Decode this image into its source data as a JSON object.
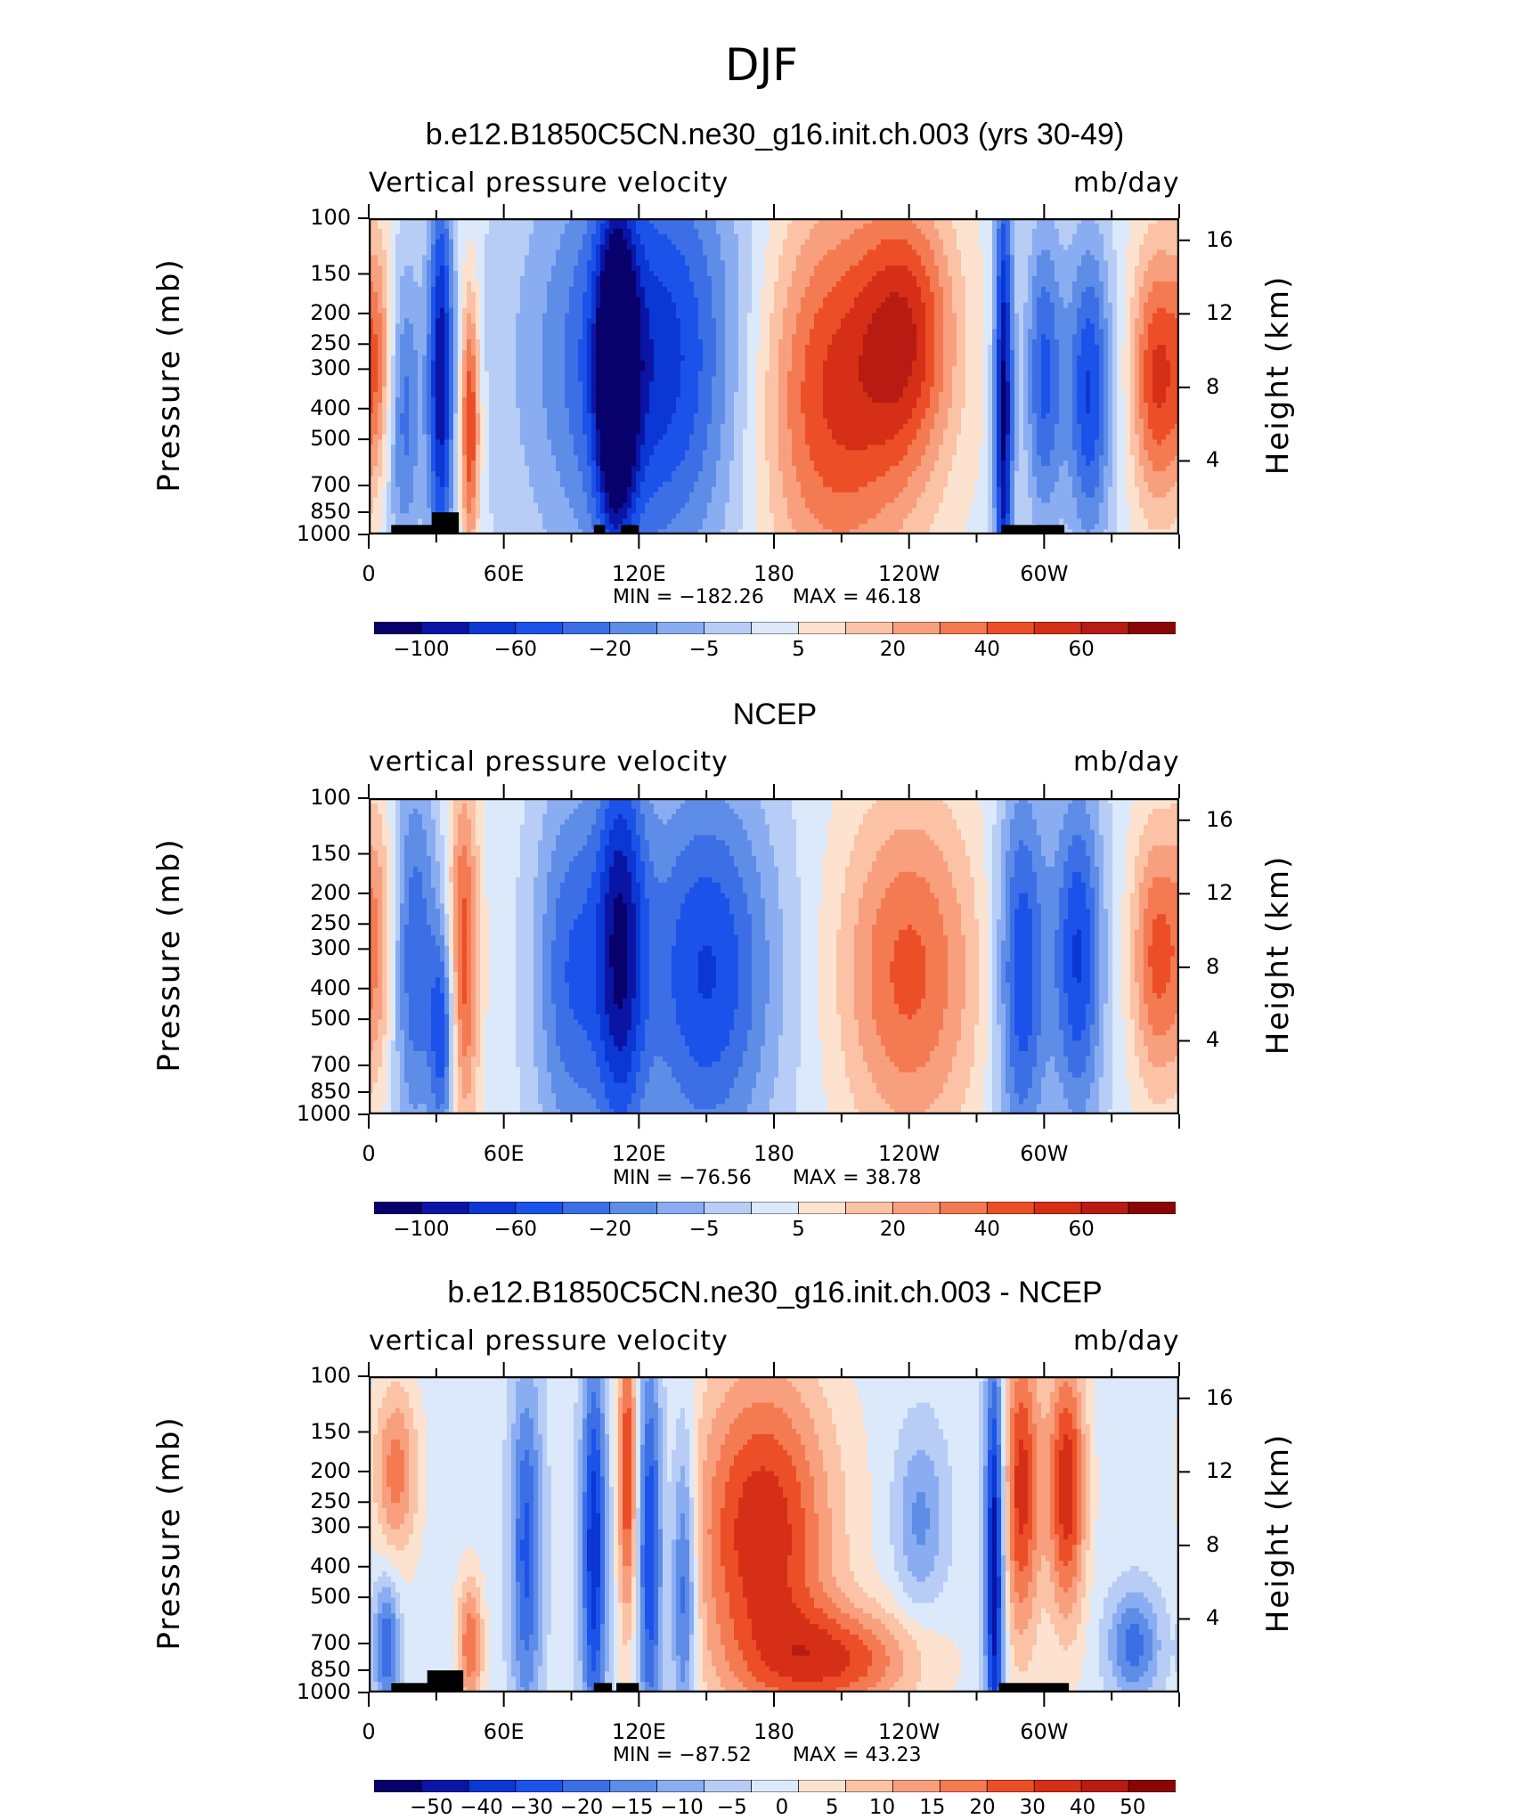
{
  "figure": {
    "suptitle": "DJF",
    "colors": {
      "model_obs_scale": [
        "#08006b",
        "#0a15a5",
        "#0b37d4",
        "#1b53ea",
        "#3c6fe6",
        "#5e8de8",
        "#8aadf2",
        "#b7cdf6",
        "#dbe9fb",
        "#fde3cf",
        "#fbc2a6",
        "#f89f7e",
        "#f47a52",
        "#ec4f27",
        "#d62f17",
        "#b81b12",
        "#8a0606"
      ]
    }
  },
  "chart_data": [
    {
      "type": "heatmap",
      "title": "b.e12.B1850C5CN.ne30_g16.init.ch.003 (yrs 30-49)",
      "left_label": "Vertical pressure velocity",
      "right_label": "mb/day",
      "ylabel": "Pressure (mb)",
      "ylabel_right": "Height (km)",
      "x_ticks": [
        "0",
        "60E",
        "120E",
        "180",
        "120W",
        "60W"
      ],
      "y_ticks": [
        "100",
        "150",
        "200",
        "250",
        "300",
        "400",
        "500",
        "700",
        "850",
        "1000"
      ],
      "y_right_ticks": [
        "16",
        "12",
        "8",
        "4"
      ],
      "min_label": "MIN = −182.26",
      "max_label": "MAX = 46.18",
      "colorbar_labels": [
        "−100",
        "−60",
        "−20",
        "−5",
        "5",
        "20",
        "40",
        "60"
      ],
      "blobs": [
        {
          "lon": 15,
          "p": 0.6,
          "rl": 6,
          "rp": 0.35,
          "v": -0.55
        },
        {
          "lon": 32,
          "p": 0.5,
          "rl": 4,
          "rp": 0.45,
          "v": -0.9
        },
        {
          "lon": 45,
          "p": 0.65,
          "rl": 3,
          "rp": 0.3,
          "v": 0.75
        },
        {
          "lon": 5,
          "p": 0.45,
          "rl": 6,
          "rp": 0.3,
          "v": 0.5
        },
        {
          "lon": 125,
          "p": 0.45,
          "rl": 35,
          "rp": 0.5,
          "v": -0.8
        },
        {
          "lon": 110,
          "p": 0.5,
          "rl": 6,
          "rp": 0.35,
          "v": -1.0
        },
        {
          "lon": 205,
          "p": 0.55,
          "rl": 28,
          "rp": 0.45,
          "v": 0.75
        },
        {
          "lon": 240,
          "p": 0.35,
          "rl": 15,
          "rp": 0.3,
          "v": 0.55
        },
        {
          "lon": 282,
          "p": 0.6,
          "rl": 3,
          "rp": 0.55,
          "v": -1.0
        },
        {
          "lon": 300,
          "p": 0.5,
          "rl": 6,
          "rp": 0.35,
          "v": -0.6
        },
        {
          "lon": 320,
          "p": 0.55,
          "rl": 7,
          "rp": 0.35,
          "v": -0.7
        },
        {
          "lon": 350,
          "p": 0.5,
          "rl": 8,
          "rp": 0.3,
          "v": 0.7
        }
      ],
      "topo": [
        [
          10,
          30,
          0.97
        ],
        [
          28,
          40,
          0.93
        ],
        [
          100,
          105,
          0.97
        ],
        [
          112,
          120,
          0.97
        ],
        [
          281,
          309,
          0.97
        ]
      ]
    },
    {
      "type": "heatmap",
      "title": "NCEP",
      "left_label": "vertical pressure velocity",
      "right_label": "mb/day",
      "ylabel": "Pressure (mb)",
      "ylabel_right": "Height (km)",
      "x_ticks": [
        "0",
        "60E",
        "120E",
        "180",
        "120W",
        "60W"
      ],
      "y_ticks": [
        "100",
        "150",
        "200",
        "250",
        "300",
        "400",
        "500",
        "700",
        "850",
        "1000"
      ],
      "y_right_ticks": [
        "16",
        "12",
        "8",
        "4"
      ],
      "min_label": "MIN = −76.56",
      "max_label": "MAX = 38.78",
      "colorbar_labels": [
        "−100",
        "−60",
        "−20",
        "−5",
        "5",
        "20",
        "40",
        "60"
      ],
      "blobs": [
        {
          "lon": 20,
          "p": 0.5,
          "rl": 8,
          "rp": 0.45,
          "v": -0.55
        },
        {
          "lon": 33,
          "p": 0.75,
          "rl": 4,
          "rp": 0.25,
          "v": -0.6
        },
        {
          "lon": 42,
          "p": 0.5,
          "rl": 5,
          "rp": 0.4,
          "v": 0.65
        },
        {
          "lon": 5,
          "p": 0.45,
          "rl": 6,
          "rp": 0.35,
          "v": 0.4
        },
        {
          "lon": 90,
          "p": 0.55,
          "rl": 12,
          "rp": 0.45,
          "v": -0.55
        },
        {
          "lon": 112,
          "p": 0.45,
          "rl": 8,
          "rp": 0.5,
          "v": -0.75
        },
        {
          "lon": 150,
          "p": 0.55,
          "rl": 22,
          "rp": 0.45,
          "v": -0.7
        },
        {
          "lon": 240,
          "p": 0.55,
          "rl": 22,
          "rp": 0.4,
          "v": 0.6
        },
        {
          "lon": 290,
          "p": 0.55,
          "rl": 8,
          "rp": 0.45,
          "v": -0.7
        },
        {
          "lon": 315,
          "p": 0.5,
          "rl": 8,
          "rp": 0.4,
          "v": -0.7
        },
        {
          "lon": 350,
          "p": 0.5,
          "rl": 8,
          "rp": 0.3,
          "v": 0.6
        }
      ],
      "topo": []
    },
    {
      "type": "heatmap",
      "title": "b.e12.B1850C5CN.ne30_g16.init.ch.003 - NCEP",
      "left_label": "vertical pressure velocity",
      "right_label": "mb/day",
      "ylabel": "Pressure (mb)",
      "ylabel_right": "Height (km)",
      "x_ticks": [
        "0",
        "60E",
        "120E",
        "180",
        "120W",
        "60W"
      ],
      "y_ticks": [
        "100",
        "150",
        "200",
        "250",
        "300",
        "400",
        "500",
        "700",
        "850",
        "1000"
      ],
      "y_right_ticks": [
        "16",
        "12",
        "8",
        "4"
      ],
      "min_label": "MIN = −87.52",
      "max_label": "MAX = 43.23",
      "colorbar_labels": [
        "−50",
        "−40",
        "−30",
        "−20",
        "−15",
        "−10",
        "−5",
        "0",
        "5",
        "10",
        "15",
        "20",
        "30",
        "40",
        "50"
      ],
      "blobs": [
        {
          "lon": 12,
          "p": 0.3,
          "rl": 7,
          "rp": 0.2,
          "v": 0.5
        },
        {
          "lon": 8,
          "p": 0.85,
          "rl": 4,
          "rp": 0.15,
          "v": -0.55
        },
        {
          "lon": 45,
          "p": 0.85,
          "rl": 4,
          "rp": 0.15,
          "v": 0.55
        },
        {
          "lon": 70,
          "p": 0.55,
          "rl": 5,
          "rp": 0.4,
          "v": -0.6
        },
        {
          "lon": 100,
          "p": 0.55,
          "rl": 4,
          "rp": 0.45,
          "v": -0.8
        },
        {
          "lon": 115,
          "p": 0.3,
          "rl": 3,
          "rp": 0.35,
          "v": 0.7
        },
        {
          "lon": 125,
          "p": 0.55,
          "rl": 4,
          "rp": 0.45,
          "v": -0.75
        },
        {
          "lon": 140,
          "p": 0.65,
          "rl": 4,
          "rp": 0.35,
          "v": -0.65
        },
        {
          "lon": 175,
          "p": 0.5,
          "rl": 22,
          "rp": 0.38,
          "v": 0.8
        },
        {
          "lon": 210,
          "p": 0.9,
          "rl": 25,
          "rp": 0.12,
          "v": 0.6
        },
        {
          "lon": 245,
          "p": 0.45,
          "rl": 8,
          "rp": 0.2,
          "v": -0.35
        },
        {
          "lon": 278,
          "p": 0.6,
          "rl": 3,
          "rp": 0.5,
          "v": -1.0
        },
        {
          "lon": 290,
          "p": 0.35,
          "rl": 6,
          "rp": 0.35,
          "v": 0.75
        },
        {
          "lon": 310,
          "p": 0.35,
          "rl": 6,
          "rp": 0.3,
          "v": 0.8
        },
        {
          "lon": 340,
          "p": 0.85,
          "rl": 8,
          "rp": 0.12,
          "v": -0.5
        }
      ],
      "topo": [
        [
          10,
          28,
          0.97
        ],
        [
          26,
          42,
          0.93
        ],
        [
          100,
          108,
          0.97
        ],
        [
          110,
          120,
          0.97
        ],
        [
          280,
          311,
          0.97
        ]
      ]
    }
  ]
}
